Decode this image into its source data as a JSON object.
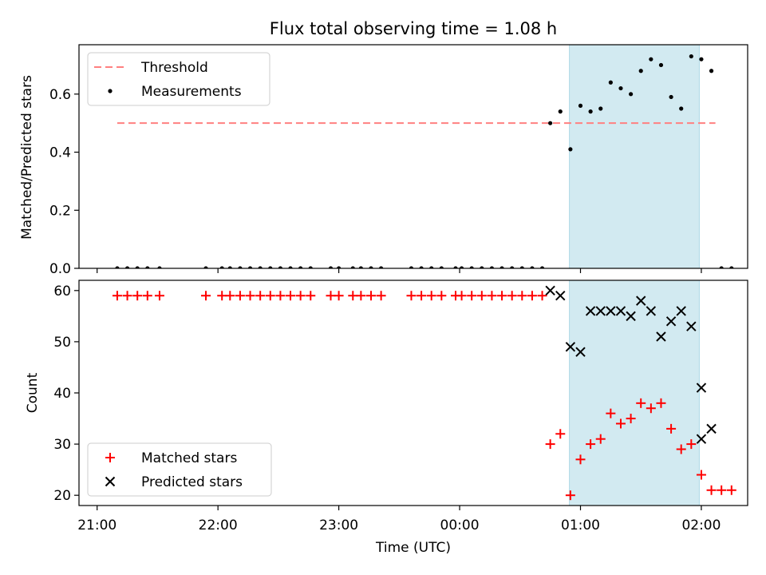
{
  "title": "Flux total observing time = 1.08 h",
  "xlabel": "Time (UTC)",
  "x_ticks": [
    "21:00",
    "22:00",
    "23:00",
    "00:00",
    "01:00",
    "02:00"
  ],
  "x_tick_minutes": [
    0,
    60,
    120,
    180,
    240,
    300
  ],
  "x_range_minutes": [
    -9,
    323
  ],
  "shaded_interval_minutes": [
    234.5,
    299
  ],
  "colors": {
    "shade": "#add8e6",
    "threshold": "#ff8080",
    "measurement": "#000000",
    "matched": "#ff0000",
    "predicted": "#000000"
  },
  "chart_data": [
    {
      "type": "scatter",
      "ylabel": "Matched/Predicted stars",
      "ylim": [
        0,
        0.77
      ],
      "y_ticks": [
        "0.0",
        "0.2",
        "0.4",
        "0.6"
      ],
      "y_tick_values": [
        0,
        0.2,
        0.4,
        0.6
      ],
      "legend_position": "upper-left",
      "legend": [
        "Threshold",
        "Measurements"
      ],
      "threshold": {
        "value": 0.5,
        "x_start": 10,
        "x_end": 307
      },
      "measurements": {
        "x": [
          10,
          15,
          20,
          25,
          31,
          54,
          62,
          66,
          71,
          76,
          81,
          86,
          91,
          96,
          101,
          106,
          116,
          120,
          127,
          131,
          136,
          141,
          156,
          161,
          166,
          171,
          178,
          181,
          186,
          191,
          196,
          201,
          206,
          211,
          216,
          221,
          225,
          230,
          235,
          240,
          245,
          250,
          255,
          260,
          265,
          270,
          275,
          280,
          285,
          290,
          295,
          300,
          305
        ],
        "y": [
          0,
          0,
          0,
          0,
          0,
          0,
          0,
          0,
          0,
          0,
          0,
          0,
          0,
          0,
          0,
          0,
          0,
          0,
          0,
          0,
          0,
          0,
          0,
          0,
          0,
          0,
          0,
          0,
          0,
          0,
          0,
          0,
          0,
          0,
          0,
          0,
          0.5,
          0.54,
          0.41,
          0.56,
          0.54,
          0.55,
          0.64,
          0.62,
          0.6,
          0.68,
          0.72,
          0.7,
          0.59,
          0.55,
          0.73,
          0.72,
          0.68
        ]
      },
      "tail": {
        "x": [
          310,
          315
        ],
        "y": [
          0,
          0
        ]
      }
    },
    {
      "type": "scatter",
      "ylabel": "Count",
      "ylim": [
        18,
        62
      ],
      "y_ticks": [
        "20",
        "30",
        "40",
        "50",
        "60"
      ],
      "y_tick_values": [
        20,
        30,
        40,
        50,
        60
      ],
      "legend_position": "lower-left",
      "legend": [
        "Matched stars",
        "Predicted stars"
      ],
      "matched": {
        "x": [
          10,
          15,
          20,
          25,
          31,
          54,
          62,
          66,
          71,
          76,
          81,
          86,
          91,
          96,
          101,
          106,
          116,
          120,
          127,
          131,
          136,
          141,
          156,
          161,
          166,
          171,
          178,
          181,
          186,
          191,
          196,
          201,
          206,
          211,
          216,
          221,
          225,
          230,
          235,
          240,
          245,
          250,
          255,
          260,
          265,
          270,
          275,
          280,
          285,
          290,
          295,
          300,
          305,
          310,
          315
        ],
        "y": [
          59,
          59,
          59,
          59,
          59,
          59,
          59,
          59,
          59,
          59,
          59,
          59,
          59,
          59,
          59,
          59,
          59,
          59,
          59,
          59,
          59,
          59,
          59,
          59,
          59,
          59,
          59,
          59,
          59,
          59,
          59,
          59,
          59,
          59,
          59,
          59,
          30,
          32,
          20,
          27,
          30,
          31,
          36,
          34,
          35,
          38,
          37,
          38,
          33,
          29,
          30,
          24,
          21,
          21,
          21
        ]
      },
      "predicted": {
        "x": [
          225,
          230,
          235,
          240,
          245,
          250,
          255,
          260,
          265,
          270,
          275,
          280,
          285,
          290,
          295,
          300,
          305
        ],
        "y": [
          60,
          59,
          49,
          48,
          56,
          56,
          56,
          56,
          55,
          58,
          56,
          51,
          54,
          56,
          53,
          41,
          33
        ]
      },
      "predicted_tail": {
        "x": [
          300
        ],
        "y": [
          31
        ]
      }
    }
  ]
}
